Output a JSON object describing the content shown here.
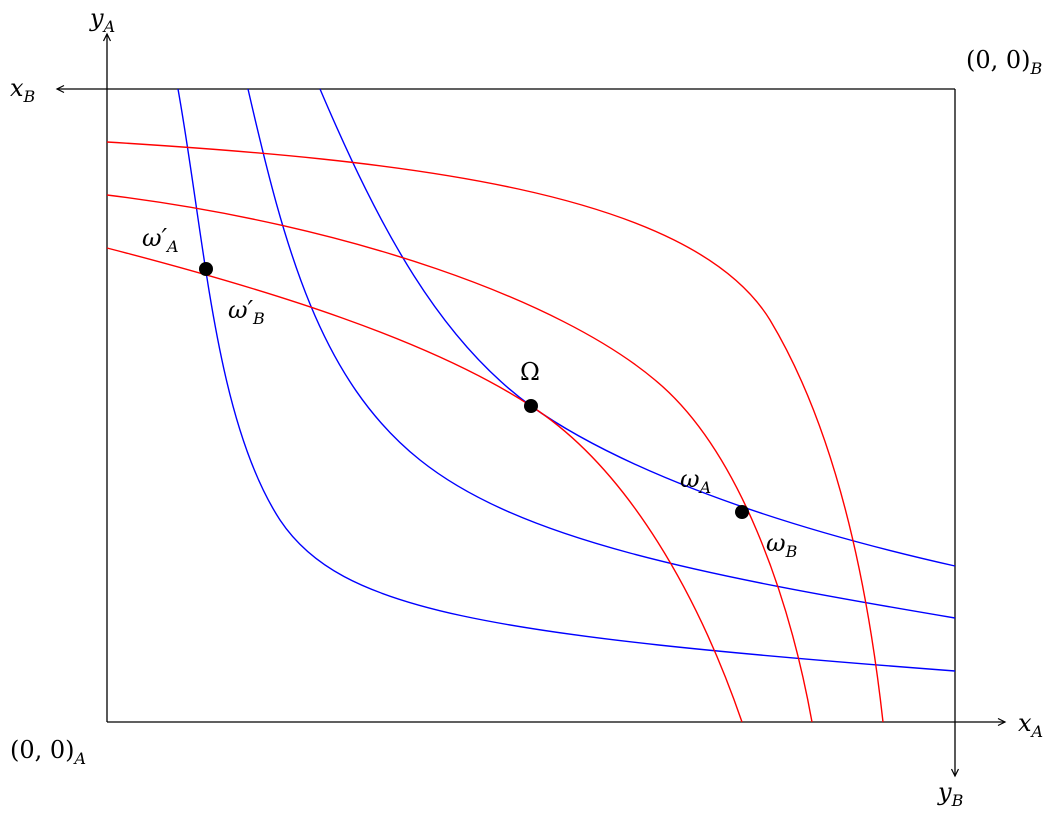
{
  "colors": {
    "household_a_curves": "#0000ff",
    "household_b_curves": "#ff0000",
    "axes": "#000000",
    "points": "#000000"
  },
  "labels": {
    "x_axis_a": {
      "base": "x",
      "sub": "A"
    },
    "y_axis_a": {
      "base": "y",
      "sub": "A"
    },
    "x_axis_b": {
      "base": "x",
      "sub": "B"
    },
    "y_axis_b": {
      "base": "y",
      "sub": "B"
    },
    "origin_a": {
      "base": "(0, 0)",
      "sub": "A"
    },
    "origin_b": {
      "base": "(0, 0)",
      "sub": "B"
    }
  },
  "points": {
    "omega_prime": {
      "label_a": {
        "base": "ω′",
        "sub": "A"
      },
      "label_b": {
        "base": "ω′",
        "sub": "B"
      }
    },
    "equilibrium": {
      "label": "Ω"
    },
    "omega": {
      "label_a": {
        "base": "ω",
        "sub": "A"
      },
      "label_b": {
        "base": "ω",
        "sub": "B"
      }
    }
  },
  "curves": {
    "household_a_count": 3,
    "household_b_count": 3
  }
}
